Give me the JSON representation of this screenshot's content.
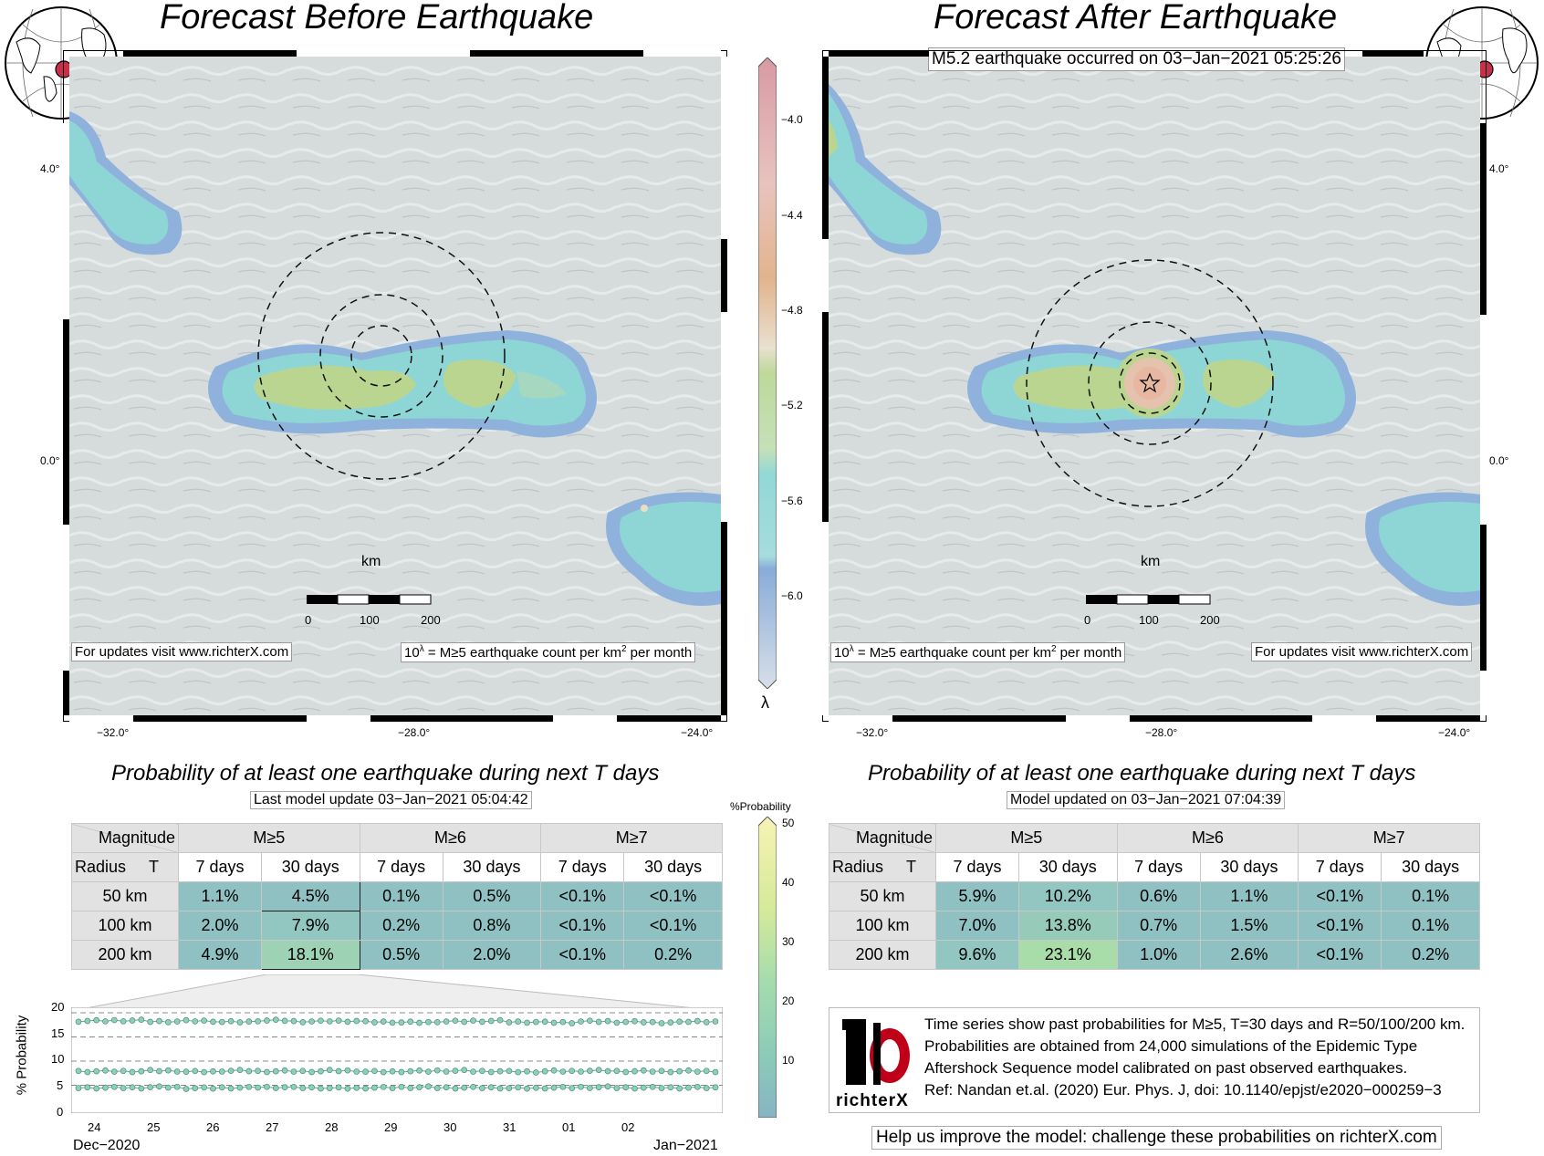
{
  "left_panel": {
    "title": "Forecast Before Earthquake",
    "lat_labels": [
      "4.0°",
      "0.0°"
    ],
    "lon_labels": [
      "−32.0°",
      "−28.0°",
      "−24.0°"
    ],
    "km_label": "km",
    "scale_ticks": [
      "0",
      "100",
      "200"
    ],
    "update_note": "For updates visit www.richterX.com",
    "lambda_note": "10^λ = M≥5 earthquake count per km² per month",
    "prob_title": "Probability of at least one earthquake during next T days",
    "prob_subtitle": "Last model update 03−Jan−2021 05:04:42"
  },
  "right_panel": {
    "title": "Forecast After Earthquake",
    "event_note": "M5.2 earthquake occurred on 03−Jan−2021 05:25:26",
    "lat_labels": [
      "4.0°",
      "0.0°"
    ],
    "lon_labels": [
      "−32.0°",
      "−28.0°",
      "−24.0°"
    ],
    "km_label": "km",
    "scale_ticks": [
      "0",
      "100",
      "200"
    ],
    "update_note": "For updates visit www.richterX.com",
    "lambda_note": "10^λ = M≥5 earthquake count per km² per month",
    "prob_title": "Probability of at least one earthquake during next T days",
    "prob_subtitle": "Model updated on 03−Jan−2021 07:04:39"
  },
  "colorbar": {
    "ticks": [
      "−4.0",
      "−4.4",
      "−4.8",
      "−5.2",
      "−5.6",
      "−6.0"
    ],
    "symbol": "λ"
  },
  "prob_colorbar": {
    "title": "%Probability",
    "ticks": [
      "50",
      "40",
      "30",
      "20",
      "10"
    ]
  },
  "table_headers": {
    "magnitude": "Magnitude",
    "radius": "Radius",
    "t": "T",
    "m5": "M≥5",
    "m6": "M≥6",
    "m7": "M≥7",
    "d7": "7 days",
    "d30": "30 days"
  },
  "table_before": {
    "rows": [
      {
        "radius": "50 km",
        "cells": [
          "1.1%",
          "4.5%",
          "0.1%",
          "0.5%",
          "<0.1%",
          "<0.1%"
        ]
      },
      {
        "radius": "100 km",
        "cells": [
          "2.0%",
          "7.9%",
          "0.2%",
          "0.8%",
          "<0.1%",
          "<0.1%"
        ]
      },
      {
        "radius": "200 km",
        "cells": [
          "4.9%",
          "18.1%",
          "0.5%",
          "2.0%",
          "<0.1%",
          "0.2%"
        ]
      }
    ]
  },
  "table_after": {
    "rows": [
      {
        "radius": "50 km",
        "cells": [
          "5.9%",
          "10.2%",
          "0.6%",
          "1.1%",
          "<0.1%",
          "0.1%"
        ]
      },
      {
        "radius": "100 km",
        "cells": [
          "7.0%",
          "13.8%",
          "0.7%",
          "1.5%",
          "<0.1%",
          "0.1%"
        ]
      },
      {
        "radius": "200 km",
        "cells": [
          "9.6%",
          "23.1%",
          "1.0%",
          "2.6%",
          "<0.1%",
          "0.2%"
        ]
      }
    ]
  },
  "colors": {
    "cell_low": "#8fc1c2",
    "cell_mid": "#9ed2b4",
    "cell_hi": "#a8dca8",
    "map_bg": "#d6dbdc",
    "halo_blue": "#8fb2dc",
    "ring_cyan": "#8ed6d6",
    "core_green": "#b9d58f",
    "peak_orange": "#e7b7a2"
  },
  "timeseries": {
    "ylabel": "% Probability",
    "yticks": [
      "20",
      "15",
      "10",
      "5",
      "0"
    ],
    "xticks": [
      "24",
      "25",
      "26",
      "27",
      "28",
      "29",
      "30",
      "31",
      "01",
      "02"
    ],
    "month_left": "Dec−2020",
    "month_right": "Jan−2021",
    "chart_data": {
      "type": "line",
      "ylim": [
        0,
        20
      ],
      "series": [
        {
          "values": [
            18.3,
            18.4,
            18.2,
            18.3,
            18.1,
            18.4,
            18.2,
            18.3,
            18.1,
            18.0,
            18.2,
            18.3,
            18.1,
            18.0,
            18.2,
            18.1,
            18.0,
            18.2
          ]
        },
        {
          "values": [
            7.9,
            7.9,
            8.0,
            7.8,
            8.0,
            7.9,
            7.9,
            8.0,
            7.8,
            7.9,
            8.0,
            7.9,
            7.8,
            7.9,
            8.0,
            7.9,
            7.9,
            7.9
          ]
        },
        {
          "values": [
            4.5,
            4.5,
            4.6,
            4.4,
            4.5,
            4.6,
            4.5,
            4.4,
            4.5,
            4.6,
            4.5,
            4.5,
            4.4,
            4.5,
            4.6,
            4.5,
            4.5,
            4.5
          ]
        }
      ]
    }
  },
  "info": {
    "line1": "Time series show past probabilities for M≥5, T=30 days and R=50/100/200 km.",
    "line2": "Probabilities are obtained from 24,000 simulations of the Epidemic Type",
    "line3": "Aftershock Sequence model calibrated on past observed earthquakes.",
    "line4": "Ref: Nandan et.al. (2020) Eur. Phys. J, doi: 10.1140/epjst/e2020−000259−3",
    "logo_text": "richterX",
    "logo_icon": "richterx-logo-icon"
  },
  "help": "Help us improve the model: challenge these probabilities on richterX.com"
}
